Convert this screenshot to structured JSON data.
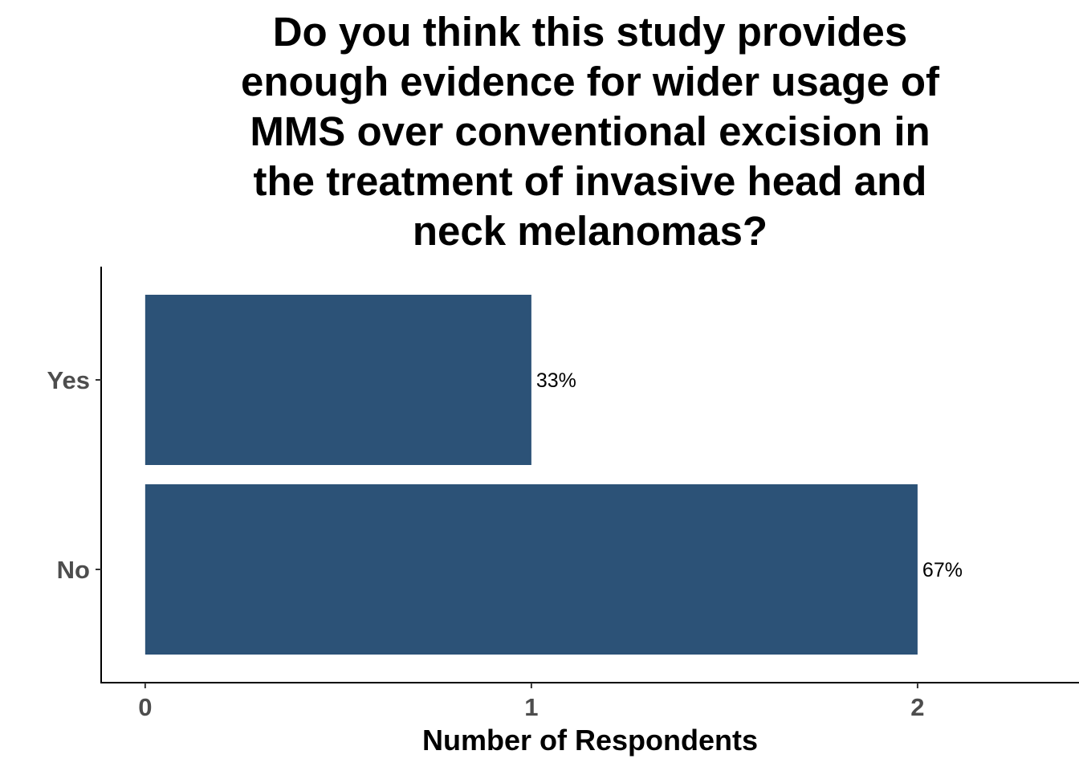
{
  "chart_data": {
    "type": "bar",
    "orientation": "horizontal",
    "title_lines": [
      "Do you think this study provides",
      "enough evidence for wider usage of",
      "MMS over conventional excision in",
      "the treatment of invasive head and",
      "neck melanomas?"
    ],
    "categories": [
      "Yes",
      "No"
    ],
    "values": [
      1,
      2
    ],
    "data_labels": [
      "33%",
      "67%"
    ],
    "xlabel": "Number of Respondents",
    "ylabel": "",
    "xticks": [
      "0",
      "1",
      "2"
    ],
    "xlim": [
      -0.114,
      2.418
    ],
    "grid": false,
    "legend": "none",
    "bar_color": "#2c5277"
  }
}
